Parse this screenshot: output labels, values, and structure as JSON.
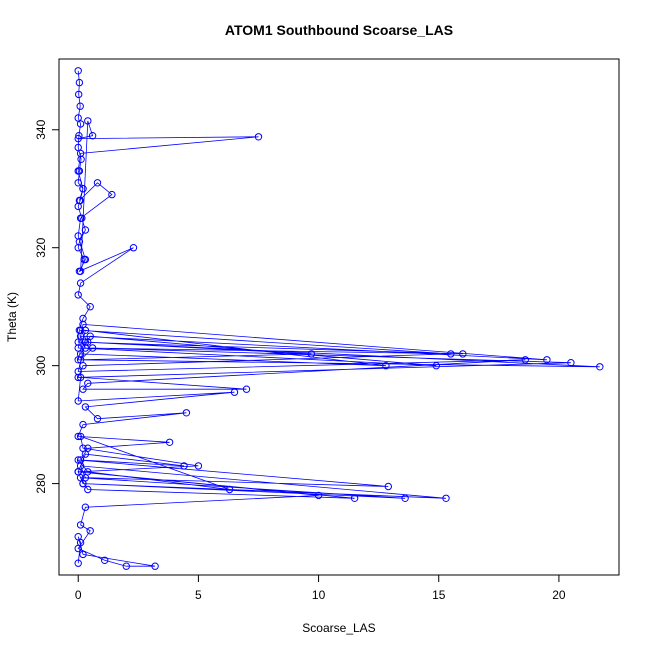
{
  "chart_data": {
    "type": "line",
    "title": "ATOM1 Southbound Scoarse_LAS",
    "xlabel": "Scoarse_LAS",
    "ylabel": "Theta (K)",
    "xlim": [
      -0.8,
      22.5
    ],
    "ylim": [
      264.5,
      352
    ],
    "xticks": [
      0,
      5,
      10,
      15,
      20
    ],
    "yticks": [
      280,
      300,
      320,
      340
    ],
    "grid": false,
    "legend": "none",
    "series": [
      {
        "color": "#0000ff",
        "marker": "open-circle",
        "x": [
          0.0,
          0.05,
          0.02,
          0.08,
          0.0,
          0.1,
          0.03,
          0.0,
          0.12,
          0.05,
          0.0,
          0.2,
          0.08,
          0.0,
          0.15,
          0.3,
          0.05,
          0.0,
          0.25,
          0.1,
          0.4,
          0.6,
          0.0,
          7.5,
          0.1,
          0.0,
          0.2,
          0.05,
          0.8,
          1.4,
          0.1,
          0.0,
          0.3,
          0.05,
          2.3,
          0.1,
          0.0,
          0.5,
          0.2,
          0.05,
          0.0,
          16.0,
          0.3,
          0.1,
          19.5,
          0.2,
          0.0,
          14.9,
          0.5,
          0.1,
          12.8,
          0.3,
          0.0,
          21.7,
          0.4,
          0.1,
          15.5,
          0.2,
          0.0,
          20.5,
          0.6,
          0.1,
          9.7,
          0.3,
          0.0,
          18.6,
          0.4,
          0.2,
          7.0,
          0.1,
          0.0,
          6.5,
          0.3,
          0.8,
          4.5,
          0.2,
          0.0,
          3.8,
          0.4,
          0.1,
          4.4,
          0.3,
          0.0,
          5.0,
          0.2,
          0.1,
          6.3,
          0.4,
          0.0,
          12.9,
          0.3,
          0.1,
          15.3,
          0.2,
          0.0,
          11.5,
          0.4,
          0.1,
          13.6,
          0.2,
          0.0,
          10.0,
          0.3,
          0.1,
          0.5,
          0.0,
          1.1,
          2.0,
          3.2,
          0.2,
          0.0,
          0.1,
          0.0
        ],
        "y": [
          350.0,
          348.0,
          346.0,
          344.0,
          342.0,
          341.0,
          339.0,
          337.0,
          335.0,
          333.0,
          331.0,
          330.0,
          328.0,
          327.0,
          325.0,
          323.0,
          321.0,
          320.0,
          318.0,
          316.0,
          341.5,
          339.0,
          338.5,
          338.8,
          336.0,
          333.0,
          330.0,
          328.0,
          331.0,
          329.0,
          325.0,
          322.0,
          318.0,
          316.0,
          320.0,
          314.0,
          312.0,
          310.0,
          308.0,
          306.0,
          304.0,
          302.0,
          303.0,
          305.0,
          301.0,
          307.0,
          303.0,
          300.0,
          305.0,
          302.0,
          300.0,
          306.0,
          301.0,
          299.8,
          304.0,
          306.0,
          302.0,
          300.0,
          298.0,
          300.5,
          303.0,
          301.0,
          302.0,
          304.0,
          299.0,
          301.0,
          297.0,
          296.0,
          296.0,
          298.0,
          294.0,
          295.5,
          293.0,
          291.0,
          292.0,
          290.0,
          288.0,
          287.0,
          286.0,
          284.0,
          283.0,
          285.0,
          282.0,
          283.0,
          286.0,
          288.0,
          279.0,
          282.0,
          284.0,
          279.5,
          281.0,
          283.0,
          277.5,
          280.0,
          282.0,
          277.5,
          279.0,
          281.0,
          277.5,
          280.0,
          282.0,
          278.0,
          276.0,
          273.0,
          272.0,
          269.0,
          267.0,
          266.0,
          266.0,
          268.0,
          271.0,
          270.0,
          266.5
        ]
      }
    ]
  }
}
